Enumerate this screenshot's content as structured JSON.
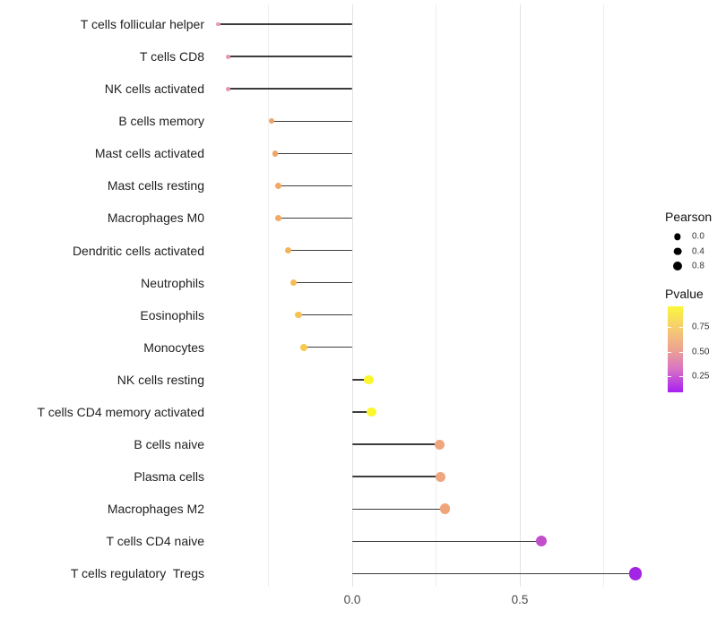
{
  "figure": {
    "background": "#ffffff",
    "grid_color_major": "#e3e3e3",
    "grid_color_minor": "#efefef",
    "stem_color": "#3c3c3c",
    "label_color": "#1f1f1f",
    "tick_label_color": "#4a4a4a"
  },
  "chart_data": {
    "type": "lollipop",
    "orientation": "horizontal",
    "title": "",
    "xlabel": "",
    "ylabel": "",
    "x_axis": {
      "range": [
        -0.46,
        0.91
      ],
      "ticks": [
        0.0,
        0.5
      ],
      "tick_labels": [
        "0.0",
        "0.5"
      ],
      "gridlines": [
        -0.25,
        0.0,
        0.25,
        0.5,
        0.75
      ],
      "grid": "vertical-only"
    },
    "value_name": "Pearson",
    "color_name": "Pvalue",
    "points": [
      {
        "label": "T cells follicular helper",
        "pearson": -0.4,
        "pvalue": 0.44,
        "color": "#E899B8",
        "size": 4.5
      },
      {
        "label": "T cells CD8",
        "pearson": -0.37,
        "pvalue": 0.44,
        "color": "#E697B6",
        "size": 5
      },
      {
        "label": "NK cells activated",
        "pearson": -0.37,
        "pvalue": 0.44,
        "color": "#E697B6",
        "size": 5
      },
      {
        "label": "B cells memory",
        "pearson": -0.24,
        "pvalue": 0.6,
        "color": "#F0A366",
        "size": 6.5
      },
      {
        "label": "Mast cells activated",
        "pearson": -0.23,
        "pvalue": 0.6,
        "color": "#F0A466",
        "size": 6.5
      },
      {
        "label": "Mast cells resting",
        "pearson": -0.22,
        "pvalue": 0.62,
        "color": "#F1A963",
        "size": 7
      },
      {
        "label": "Macrophages M0",
        "pearson": -0.22,
        "pvalue": 0.62,
        "color": "#F1A963",
        "size": 7
      },
      {
        "label": "Dendritic cells activated",
        "pearson": -0.19,
        "pvalue": 0.66,
        "color": "#F3B35E",
        "size": 7
      },
      {
        "label": "Neutrophils",
        "pearson": -0.175,
        "pvalue": 0.68,
        "color": "#F4BB58",
        "size": 7.5
      },
      {
        "label": "Eosinophils",
        "pearson": -0.16,
        "pvalue": 0.7,
        "color": "#F6C353",
        "size": 7.5
      },
      {
        "label": "Monocytes",
        "pearson": -0.145,
        "pvalue": 0.72,
        "color": "#F7C94E",
        "size": 8
      },
      {
        "label": "NK cells resting",
        "pearson": 0.05,
        "pvalue": 0.95,
        "color": "#FBF62E",
        "size": 10.5
      },
      {
        "label": "T cells CD4 memory activated",
        "pearson": 0.057,
        "pvalue": 0.95,
        "color": "#FBF62E",
        "size": 10.5
      },
      {
        "label": "B cells naive",
        "pearson": 0.26,
        "pvalue": 0.57,
        "color": "#EFA57E",
        "size": 11
      },
      {
        "label": "Plasma cells",
        "pearson": 0.264,
        "pvalue": 0.57,
        "color": "#EFA57E",
        "size": 11
      },
      {
        "label": "Macrophages M2",
        "pearson": 0.277,
        "pvalue": 0.57,
        "color": "#F0A47A",
        "size": 11.5
      },
      {
        "label": "T cells CD4 naive",
        "pearson": 0.565,
        "pvalue": 0.18,
        "color": "#C14FC9",
        "size": 12
      },
      {
        "label": "T cells regulatory  Tregs",
        "pearson": 0.845,
        "pvalue": 0.04,
        "color": "#A324E4",
        "size": 14.5
      }
    ]
  },
  "legend": {
    "pearson": {
      "title": "Pearson",
      "dot_color": "#000000",
      "entries": [
        {
          "label": "0.0",
          "size": 7.3
        },
        {
          "label": "0.4",
          "size": 8.7
        },
        {
          "label": "0.8",
          "size": 10
        }
      ]
    },
    "pvalue": {
      "title": "Pvalue",
      "tick_labels": [
        "0.75",
        "0.50",
        "0.25"
      ],
      "gradient_top_to_bottom": [
        "#FBF73A",
        "#F6CD70",
        "#ECA490",
        "#D973C4",
        "#A620F2"
      ]
    }
  }
}
